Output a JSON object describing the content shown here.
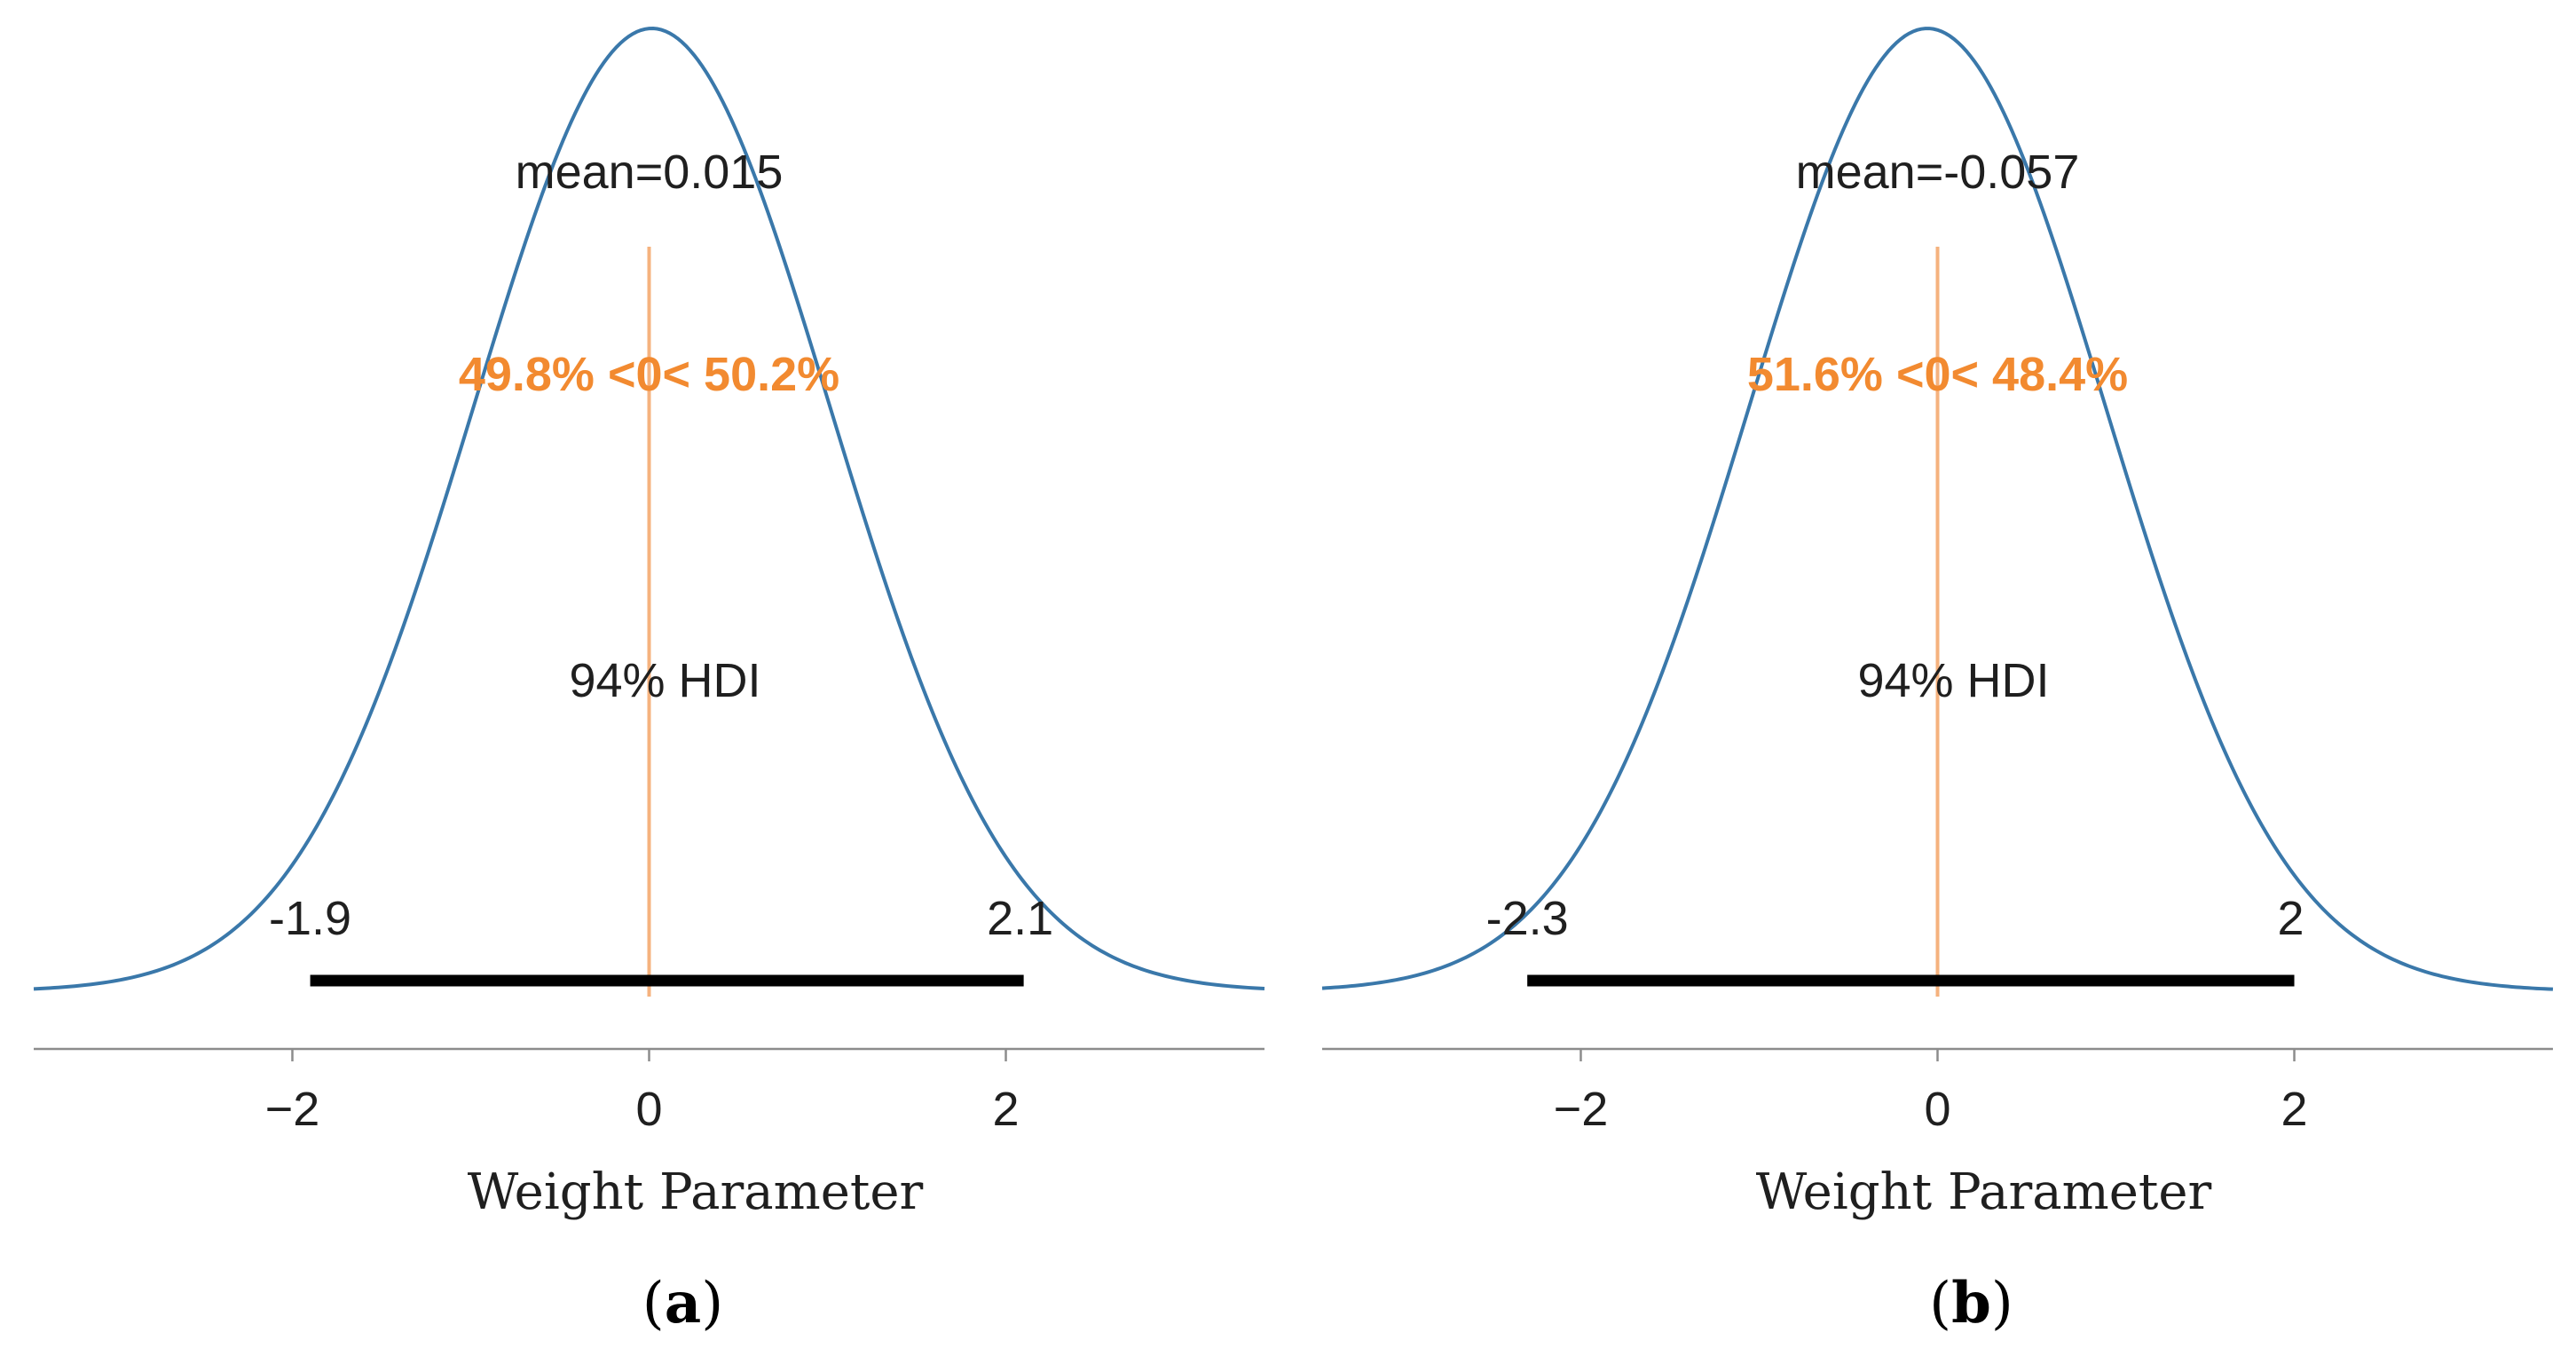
{
  "chart_data": [
    {
      "type": "area",
      "panel_label": "(a)",
      "panel_letter": "a",
      "xlabel": "Weight Parameter",
      "xlim": [
        -3.45,
        3.45
      ],
      "x_ticks": [
        -2,
        0,
        2
      ],
      "x_tick_labels": [
        "−2",
        "0",
        "2"
      ],
      "density": {
        "mean": 0.015,
        "sd": 1.0
      },
      "mean_label": "mean=0.015",
      "reference_value": 0,
      "reference_label": "49.8% <0< 50.2%",
      "hdi": {
        "prob_label": "94% HDI",
        "low": -1.9,
        "high": 2.1,
        "low_label": "-1.9",
        "high_label": "2.1"
      },
      "grid": false,
      "colors": {
        "curve": "#3a78aa",
        "reference": "#f5b27e",
        "reference_text": "#f28a30",
        "hdi": "#000000",
        "text": "#1f1f1f"
      }
    },
    {
      "type": "area",
      "panel_label": "(b)",
      "panel_letter": "b",
      "xlabel": "Weight Parameter",
      "xlim": [
        -3.45,
        3.45
      ],
      "x_ticks": [
        -2,
        0,
        2
      ],
      "x_tick_labels": [
        "−2",
        "0",
        "2"
      ],
      "density": {
        "mean": -0.057,
        "sd": 1.0
      },
      "mean_label": "mean=-0.057",
      "reference_value": 0,
      "reference_label": "51.6% <0< 48.4%",
      "hdi": {
        "prob_label": "94% HDI",
        "low": -2.3,
        "high": 2.0,
        "low_label": "-2.3",
        "high_label": "2"
      },
      "grid": false,
      "colors": {
        "curve": "#3a78aa",
        "reference": "#f5b27e",
        "reference_text": "#f28a30",
        "hdi": "#000000",
        "text": "#1f1f1f"
      }
    }
  ]
}
